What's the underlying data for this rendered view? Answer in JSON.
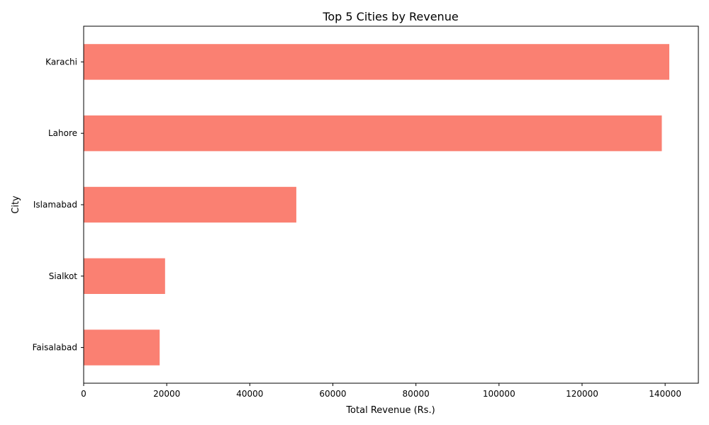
{
  "chart_data": {
    "type": "bar",
    "orientation": "horizontal",
    "title": "Top 5 Cities by Revenue",
    "xlabel": "Total Revenue (Rs.)",
    "ylabel": "City",
    "categories": [
      "Karachi",
      "Lahore",
      "Islamabad",
      "Sialkot",
      "Faisalabad"
    ],
    "values": [
      141000,
      139200,
      51200,
      19600,
      18300
    ],
    "xlim": [
      0,
      148000
    ],
    "xticks": [
      0,
      20000,
      40000,
      60000,
      80000,
      100000,
      120000,
      140000
    ],
    "bar_color": "#fa8072",
    "grid": false,
    "legend": "none"
  }
}
